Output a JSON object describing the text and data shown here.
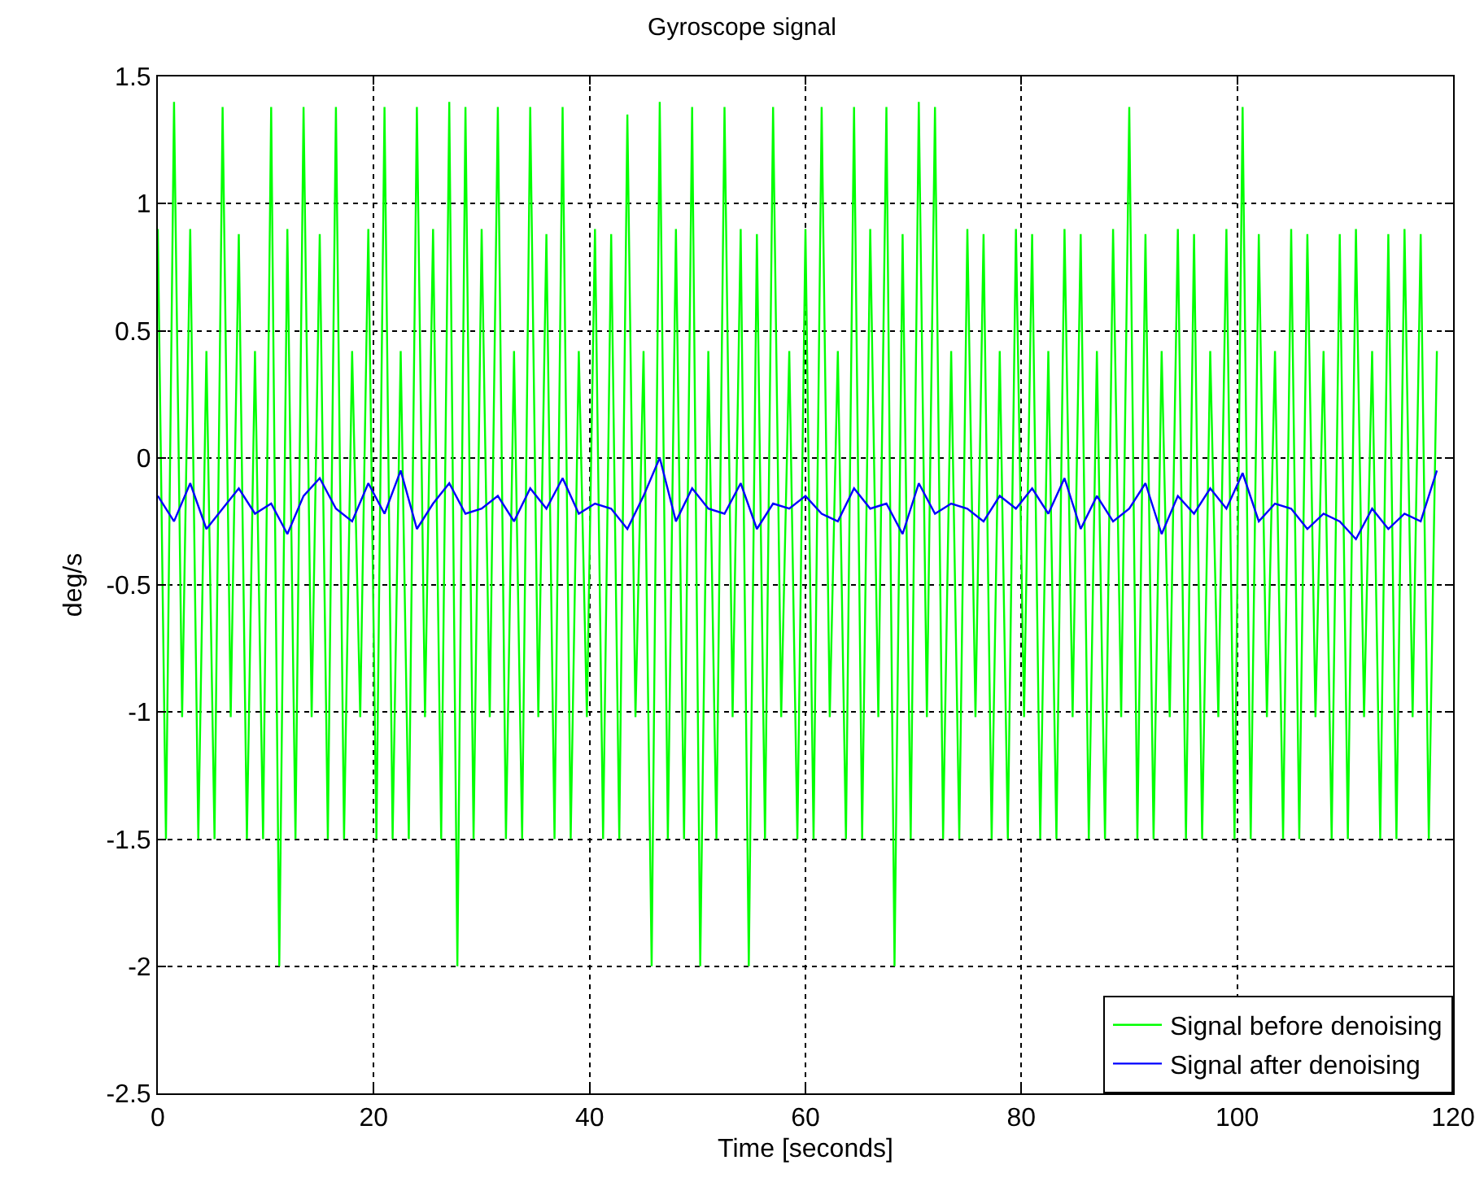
{
  "chart_data": {
    "type": "line",
    "title": "Gyroscope signal",
    "xlabel": "Time [seconds]",
    "ylabel": "deg/s",
    "xlim": [
      0,
      120
    ],
    "xticks": [
      0,
      20,
      40,
      60,
      80,
      100,
      120
    ],
    "ylim": [
      -2.5,
      1.5
    ],
    "yticks": [
      -2.5,
      -2,
      -1.5,
      -1,
      -0.5,
      0,
      0.5,
      1,
      1.5
    ],
    "grid": true,
    "legend": "bottom right",
    "series": [
      {
        "name": "Signal before denoising",
        "color": "#00ff00",
        "x": [
          0,
          0.75,
          1.5,
          2.25,
          3,
          3.75,
          4.5,
          5.25,
          6,
          6.75,
          7.5,
          8.25,
          9,
          9.75,
          10.5,
          11.25,
          12,
          12.75,
          13.5,
          14.25,
          15,
          15.75,
          16.5,
          17.25,
          18,
          18.75,
          19.5,
          20.25,
          21,
          21.75,
          22.5,
          23.25,
          24,
          24.75,
          25.5,
          26.25,
          27,
          27.75,
          28.5,
          29.25,
          30,
          30.75,
          31.5,
          32.25,
          33,
          33.75,
          34.5,
          35.25,
          36,
          36.75,
          37.5,
          38.25,
          39,
          39.75,
          40.5,
          41.25,
          42,
          42.75,
          43.5,
          44.25,
          45,
          45.75,
          46.5,
          47.25,
          48,
          48.75,
          49.5,
          50.25,
          51,
          51.75,
          52.5,
          53.25,
          54,
          54.75,
          55.5,
          56.25,
          57,
          57.75,
          58.5,
          59.25,
          60,
          60.75,
          61.5,
          62.25,
          63,
          63.75,
          64.5,
          65.25,
          66,
          66.75,
          67.5,
          68.25,
          69,
          69.75,
          70.5,
          71.25,
          72,
          72.75,
          73.5,
          74.25,
          75,
          75.75,
          76.5,
          77.25,
          78,
          78.75,
          79.5,
          80.25,
          81,
          81.75,
          82.5,
          83.25,
          84,
          84.75,
          85.5,
          86.25,
          87,
          87.75,
          88.5,
          89.25,
          90,
          90.75,
          91.5,
          92.25,
          93,
          93.75,
          94.5,
          95.25,
          96,
          96.75,
          97.5,
          98.25,
          99,
          99.75,
          100.5,
          101.25,
          102,
          102.75,
          103.5,
          104.25,
          105,
          105.75,
          106.5,
          107.25,
          108,
          108.75,
          109.5,
          110.25,
          111,
          111.75,
          112.5,
          113.25,
          114,
          114.75,
          115.5,
          116.25,
          117,
          117.75,
          118.5
        ],
        "values": [
          0.9,
          -1.5,
          1.4,
          -1.02,
          0.9,
          -1.5,
          0.42,
          -1.5,
          1.38,
          -1.02,
          0.88,
          -1.5,
          0.42,
          -1.5,
          1.38,
          -2.0,
          0.9,
          -1.5,
          1.38,
          -1.02,
          0.88,
          -1.5,
          1.38,
          -1.5,
          0.42,
          -1.02,
          0.9,
          -1.5,
          1.38,
          -1.5,
          0.42,
          -1.5,
          1.38,
          -1.02,
          0.9,
          -1.5,
          1.4,
          -2.0,
          1.38,
          -1.5,
          0.9,
          -1.02,
          1.38,
          -1.5,
          0.42,
          -1.5,
          1.38,
          -1.02,
          0.88,
          -1.5,
          1.38,
          -1.5,
          0.42,
          -1.02,
          0.9,
          -1.5,
          0.88,
          -1.5,
          1.35,
          -1.02,
          0.42,
          -2.0,
          1.4,
          -1.5,
          0.9,
          -1.5,
          1.38,
          -2.0,
          0.42,
          -1.5,
          1.38,
          -1.02,
          0.9,
          -2.0,
          0.88,
          -1.5,
          1.38,
          -1.02,
          0.42,
          -1.5,
          0.9,
          -1.5,
          1.38,
          -1.02,
          0.42,
          -1.5,
          1.38,
          -1.5,
          0.9,
          -1.02,
          1.38,
          -2.0,
          0.88,
          -1.5,
          1.4,
          -1.02,
          1.38,
          -1.5,
          0.42,
          -1.5,
          0.9,
          -1.02,
          0.88,
          -1.5,
          0.42,
          -1.5,
          0.9,
          -1.02,
          0.88,
          -1.5,
          0.42,
          -1.5,
          0.9,
          -1.02,
          0.88,
          -1.5,
          0.42,
          -1.5,
          0.9,
          -1.02,
          1.38,
          -1.5,
          0.88,
          -1.5,
          0.42,
          -1.02,
          0.9,
          -1.5,
          0.88,
          -1.5,
          0.42,
          -1.02,
          0.9,
          -1.5,
          1.38,
          -1.5,
          0.88,
          -1.02,
          0.42,
          -1.5,
          0.9,
          -1.5,
          0.88,
          -1.02,
          0.42,
          -1.5,
          0.88,
          -1.5,
          0.9,
          -1.02,
          0.42,
          -1.5,
          0.88,
          -1.5,
          0.9,
          -1.02,
          0.88,
          -1.5,
          0.42
        ]
      },
      {
        "name": "Signal after denoising",
        "color": "#0000ff",
        "x": [
          0,
          1.5,
          3,
          4.5,
          6,
          7.5,
          9,
          10.5,
          12,
          13.5,
          15,
          16.5,
          18,
          19.5,
          21,
          22.5,
          24,
          25.5,
          27,
          28.5,
          30,
          31.5,
          33,
          34.5,
          36,
          37.5,
          39,
          40.5,
          42,
          43.5,
          45,
          46.5,
          48,
          49.5,
          51,
          52.5,
          54,
          55.5,
          57,
          58.5,
          60,
          61.5,
          63,
          64.5,
          66,
          67.5,
          69,
          70.5,
          72,
          73.5,
          75,
          76.5,
          78,
          79.5,
          81,
          82.5,
          84,
          85.5,
          87,
          88.5,
          90,
          91.5,
          93,
          94.5,
          96,
          97.5,
          99,
          100.5,
          102,
          103.5,
          105,
          106.5,
          108,
          109.5,
          111,
          112.5,
          114,
          115.5,
          117,
          118.5
        ],
        "values": [
          -0.15,
          -0.25,
          -0.1,
          -0.28,
          -0.2,
          -0.12,
          -0.22,
          -0.18,
          -0.3,
          -0.15,
          -0.08,
          -0.2,
          -0.25,
          -0.1,
          -0.22,
          -0.05,
          -0.28,
          -0.18,
          -0.1,
          -0.22,
          -0.2,
          -0.15,
          -0.25,
          -0.12,
          -0.2,
          -0.08,
          -0.22,
          -0.18,
          -0.2,
          -0.28,
          -0.15,
          0,
          -0.25,
          -0.12,
          -0.2,
          -0.22,
          -0.1,
          -0.28,
          -0.18,
          -0.2,
          -0.15,
          -0.22,
          -0.25,
          -0.12,
          -0.2,
          -0.18,
          -0.3,
          -0.1,
          -0.22,
          -0.18,
          -0.2,
          -0.25,
          -0.15,
          -0.2,
          -0.12,
          -0.22,
          -0.08,
          -0.28,
          -0.15,
          -0.25,
          -0.2,
          -0.1,
          -0.3,
          -0.15,
          -0.22,
          -0.12,
          -0.2,
          -0.06,
          -0.25,
          -0.18,
          -0.2,
          -0.28,
          -0.22,
          -0.25,
          -0.32,
          -0.2,
          -0.28,
          -0.22,
          -0.25,
          -0.05
        ]
      }
    ]
  }
}
